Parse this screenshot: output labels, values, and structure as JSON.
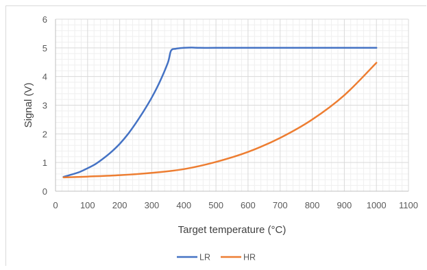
{
  "chart_data": {
    "type": "line",
    "title": "",
    "xlabel": "Target temperature (°C)",
    "ylabel": "Signal (V)",
    "xlim": [
      0,
      1100
    ],
    "ylim": [
      0,
      6
    ],
    "x_ticks": [
      "0",
      "100",
      "200",
      "300",
      "400",
      "500",
      "600",
      "700",
      "800",
      "900",
      "1000",
      "1100"
    ],
    "y_ticks": [
      "0",
      "1",
      "2",
      "3",
      "4",
      "5",
      "6"
    ],
    "grid": "major and minor",
    "legend_position": "bottom",
    "series": [
      {
        "name": "LR",
        "color": "#4472C4",
        "x": [
          25,
          50,
          75,
          100,
          125,
          150,
          175,
          200,
          225,
          250,
          275,
          300,
          325,
          350,
          360,
          375,
          400,
          425,
          450,
          500,
          600,
          700,
          800,
          900,
          1000
        ],
        "y": [
          0.5,
          0.58,
          0.67,
          0.8,
          0.95,
          1.15,
          1.38,
          1.65,
          1.98,
          2.37,
          2.8,
          3.27,
          3.82,
          4.48,
          4.9,
          4.97,
          5.0,
          5.01,
          5.0,
          5.0,
          5.0,
          5.0,
          5.0,
          5.0,
          5.0
        ]
      },
      {
        "name": "HR",
        "color": "#ED7D31",
        "x": [
          25,
          100,
          200,
          300,
          400,
          500,
          600,
          700,
          800,
          900,
          1000
        ],
        "y": [
          0.48,
          0.51,
          0.56,
          0.64,
          0.77,
          1.02,
          1.37,
          1.86,
          2.5,
          3.35,
          4.48
        ]
      }
    ]
  }
}
